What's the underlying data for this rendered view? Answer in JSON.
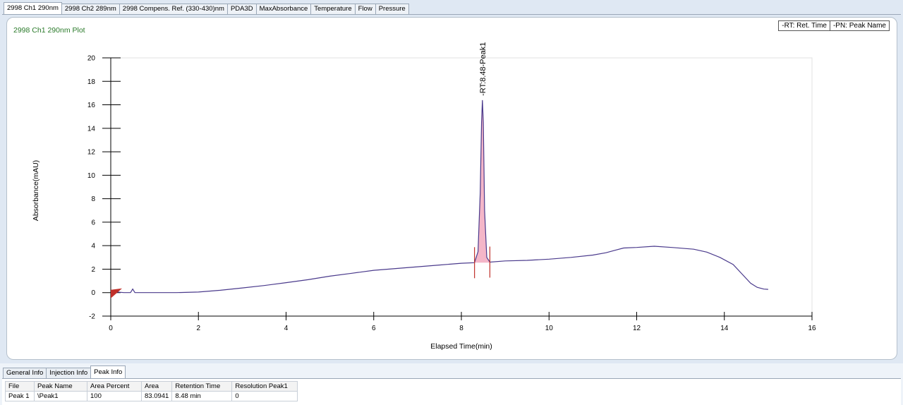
{
  "top_tabs": [
    {
      "label": "2998 Ch1 290nm",
      "active": true
    },
    {
      "label": "2998 Ch2 289nm",
      "active": false
    },
    {
      "label": "2998 Compens. Ref. (330-430)nm",
      "active": false
    },
    {
      "label": "PDA3D",
      "active": false
    },
    {
      "label": "MaxAbsorbance",
      "active": false
    },
    {
      "label": "Temperature",
      "active": false
    },
    {
      "label": "Flow",
      "active": false
    },
    {
      "label": "Pressure",
      "active": false
    }
  ],
  "plot": {
    "title": "2998 Ch1 290nm Plot",
    "legend": [
      "-RT: Ret. Time",
      "-PN: Peak Name"
    ]
  },
  "chart_data": {
    "type": "line",
    "xlabel": "Elapsed Time(min)",
    "ylabel": "Absorbance(mAU)",
    "xlim": [
      0,
      16
    ],
    "ylim": [
      -2,
      20
    ],
    "x_ticks": [
      0,
      2,
      4,
      6,
      8,
      10,
      12,
      14,
      16
    ],
    "y_ticks": [
      -2,
      0,
      2,
      4,
      6,
      8,
      10,
      12,
      14,
      16,
      18,
      20
    ],
    "grid": false,
    "line_color": "#4a3a8c",
    "peak_fill_color": "#f4b6c8",
    "marker_color": "#c0302a",
    "series": [
      {
        "x": [
          0,
          0.3,
          0.45,
          0.5,
          0.55,
          0.6,
          1,
          1.5,
          2,
          2.5,
          3,
          3.5,
          4,
          4.5,
          5,
          5.5,
          6,
          6.5,
          7,
          7.5,
          8,
          8.3,
          8.38,
          8.43,
          8.46,
          8.48,
          8.5,
          8.53,
          8.58,
          8.65,
          9,
          9.5,
          10,
          10.5,
          11,
          11.3,
          11.5,
          11.7,
          12,
          12.4,
          12.8,
          13.3,
          13.6,
          13.9,
          14.2,
          14.4,
          14.6,
          14.75,
          14.9,
          15.0
        ],
        "y": [
          0.1,
          0.0,
          0.0,
          0.3,
          0.0,
          0.0,
          0.0,
          0.0,
          0.05,
          0.2,
          0.4,
          0.6,
          0.85,
          1.1,
          1.4,
          1.65,
          1.9,
          2.05,
          2.2,
          2.35,
          2.5,
          2.55,
          3.5,
          8.5,
          14.5,
          16.4,
          14.5,
          7.0,
          3.0,
          2.6,
          2.7,
          2.75,
          2.85,
          3.0,
          3.2,
          3.4,
          3.6,
          3.8,
          3.85,
          3.95,
          3.85,
          3.7,
          3.45,
          3.0,
          2.4,
          1.6,
          0.8,
          0.45,
          0.3,
          0.28
        ]
      }
    ],
    "peak": {
      "rt": 8.48,
      "height": 16.4,
      "start": 8.3,
      "end": 8.65
    },
    "annotation": "-RT:8.48-Peak1"
  },
  "bottom_tabs": [
    {
      "label": "General Info",
      "active": false
    },
    {
      "label": "Injection Info",
      "active": false
    },
    {
      "label": "Peak Info",
      "active": true
    }
  ],
  "peak_table": {
    "headers": [
      "File",
      "Peak Name",
      "Area Percent",
      "Area",
      "Retention Time",
      "Resolution Peak1"
    ],
    "rows": [
      [
        "Peak 1",
        "\\Peak1",
        "100",
        "83.0941",
        "8.48 min",
        "0"
      ]
    ]
  }
}
